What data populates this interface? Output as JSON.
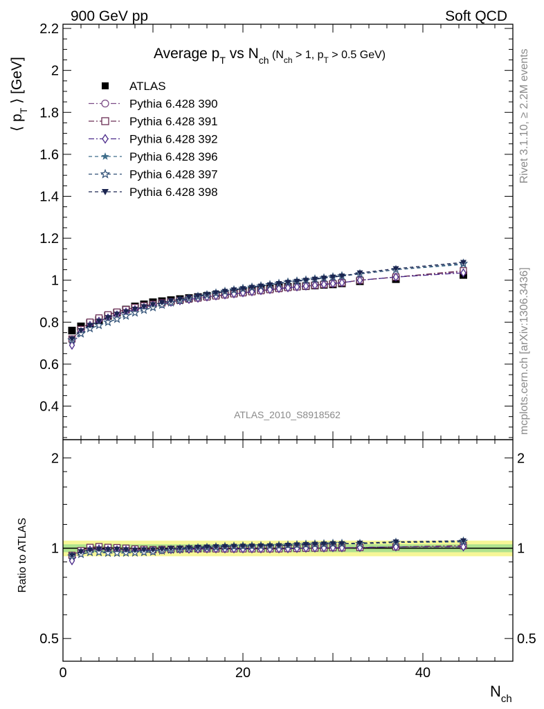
{
  "header": {
    "left": "900 GeV pp",
    "right": "Soft QCD"
  },
  "side": {
    "rivet": "Rivet 3.1.10, ≥ 2.2M events",
    "mcplots": "mcplots.cern.ch [arXiv:1306.3436]"
  },
  "analysis_tag": "ATLAS_2010_S8918562",
  "chart_data": [
    {
      "type": "scatter",
      "panel": "main",
      "title": {
        "prefix": "Average p",
        "prefix_sub": "T",
        "mid": " vs N",
        "mid_sub": "ch",
        "cuts_a": " (N",
        "cuts_a_sub": "ch",
        "cuts_b": " > 1, p",
        "cuts_b_sub": "T",
        "cuts_c": " > 0.5 GeV)"
      },
      "ylabel": {
        "pre": "⟨ p",
        "sub": "T",
        "post": " ⟩  [GeV]"
      },
      "xlabel": {
        "main": "N",
        "sub": "ch"
      },
      "xlim": [
        0,
        50
      ],
      "ylim": [
        0.24,
        2.22
      ],
      "x_ticks": [
        0,
        20,
        40
      ],
      "y_ticks": [
        0.4,
        0.6,
        0.8,
        1,
        1.2,
        1.4,
        1.6,
        1.8,
        2,
        2.2
      ],
      "legend_position": "top-left",
      "x": [
        1,
        2,
        3,
        4,
        5,
        6,
        7,
        8,
        9,
        10,
        11,
        12,
        13,
        14,
        15,
        16,
        17,
        18,
        19,
        20,
        21,
        22,
        23,
        24,
        25,
        26,
        27,
        28,
        29,
        30,
        31,
        33,
        37,
        44.5
      ],
      "series": [
        {
          "name": "ATLAS",
          "color": "#000000",
          "marker": "filled-square",
          "dash": "none",
          "values": [
            0.76,
            0.78,
            0.795,
            0.81,
            0.83,
            0.845,
            0.86,
            0.875,
            0.885,
            0.895,
            0.9,
            0.905,
            0.91,
            0.915,
            0.92,
            0.925,
            0.93,
            0.935,
            0.94,
            0.945,
            0.95,
            0.955,
            0.96,
            0.965,
            0.968,
            0.97,
            0.972,
            0.975,
            0.978,
            0.98,
            0.985,
            0.995,
            1.005,
            1.025
          ]
        },
        {
          "name": "Pythia 6.428 390",
          "color": "#7b4a85",
          "marker": "open-circle",
          "dash": "8,3,2,3",
          "values": [
            0.72,
            0.765,
            0.8,
            0.82,
            0.835,
            0.848,
            0.86,
            0.87,
            0.878,
            0.885,
            0.892,
            0.898,
            0.904,
            0.91,
            0.915,
            0.92,
            0.925,
            0.93,
            0.935,
            0.94,
            0.945,
            0.95,
            0.955,
            0.96,
            0.965,
            0.968,
            0.972,
            0.976,
            0.98,
            0.984,
            0.988,
            1.0,
            1.015,
            1.04
          ]
        },
        {
          "name": "Pythia 6.428 391",
          "color": "#6b2e55",
          "marker": "open-square",
          "dash": "8,3,2,3",
          "values": [
            0.72,
            0.765,
            0.8,
            0.82,
            0.835,
            0.848,
            0.86,
            0.87,
            0.878,
            0.885,
            0.892,
            0.898,
            0.904,
            0.91,
            0.915,
            0.92,
            0.925,
            0.93,
            0.935,
            0.94,
            0.945,
            0.95,
            0.955,
            0.96,
            0.965,
            0.968,
            0.972,
            0.976,
            0.98,
            0.984,
            0.988,
            1.0,
            1.015,
            1.045
          ]
        },
        {
          "name": "Pythia 6.428 392",
          "color": "#4b2a8a",
          "marker": "open-diamond",
          "dash": "8,3,2,3",
          "values": [
            0.69,
            0.755,
            0.785,
            0.805,
            0.82,
            0.835,
            0.848,
            0.86,
            0.87,
            0.88,
            0.888,
            0.895,
            0.902,
            0.908,
            0.914,
            0.92,
            0.925,
            0.93,
            0.935,
            0.94,
            0.945,
            0.95,
            0.955,
            0.96,
            0.964,
            0.968,
            0.972,
            0.976,
            0.98,
            0.984,
            0.988,
            1.0,
            1.015,
            1.035
          ]
        },
        {
          "name": "Pythia 6.428 396",
          "color": "#3e6d8a",
          "marker": "filled-star",
          "dash": "5,4",
          "values": [
            0.715,
            0.745,
            0.77,
            0.785,
            0.8,
            0.815,
            0.83,
            0.845,
            0.858,
            0.87,
            0.882,
            0.893,
            0.903,
            0.913,
            0.922,
            0.93,
            0.938,
            0.946,
            0.953,
            0.96,
            0.966,
            0.972,
            0.978,
            0.984,
            0.99,
            0.995,
            1.0,
            1.005,
            1.01,
            1.015,
            1.02,
            1.03,
            1.05,
            1.075
          ]
        },
        {
          "name": "Pythia 6.428 397",
          "color": "#2f4f75",
          "marker": "open-star",
          "dash": "5,4",
          "values": [
            0.715,
            0.745,
            0.77,
            0.785,
            0.8,
            0.815,
            0.83,
            0.845,
            0.858,
            0.87,
            0.882,
            0.893,
            0.903,
            0.913,
            0.922,
            0.93,
            0.938,
            0.946,
            0.953,
            0.96,
            0.966,
            0.972,
            0.978,
            0.984,
            0.99,
            0.995,
            1.0,
            1.005,
            1.01,
            1.015,
            1.02,
            1.03,
            1.05,
            1.08
          ]
        },
        {
          "name": "Pythia 6.428 398",
          "color": "#1b2550",
          "marker": "filled-triangle-down",
          "dash": "5,4",
          "values": [
            0.72,
            0.76,
            0.785,
            0.805,
            0.822,
            0.838,
            0.85,
            0.862,
            0.874,
            0.884,
            0.894,
            0.902,
            0.91,
            0.918,
            0.926,
            0.933,
            0.94,
            0.947,
            0.954,
            0.96,
            0.966,
            0.972,
            0.978,
            0.984,
            0.99,
            0.995,
            1.0,
            1.005,
            1.01,
            1.015,
            1.02,
            1.035,
            1.055,
            1.085
          ]
        }
      ]
    },
    {
      "type": "scatter",
      "panel": "ratio",
      "ylabel": "Ratio to ATLAS",
      "xlim": [
        0,
        50
      ],
      "ylim": [
        0.42,
        2.3
      ],
      "y_scale": "log",
      "y_ticks": [
        0.5,
        1,
        2
      ],
      "x_ticks": [
        0,
        20,
        40
      ],
      "reference_line": 1,
      "band_yellow": [
        0.94,
        1.06
      ],
      "band_green": [
        0.97,
        1.03
      ],
      "x": [
        1,
        2,
        3,
        4,
        5,
        6,
        7,
        8,
        9,
        10,
        11,
        12,
        13,
        14,
        15,
        16,
        17,
        18,
        19,
        20,
        21,
        22,
        23,
        24,
        25,
        26,
        27,
        28,
        29,
        30,
        31,
        33,
        37,
        44.5
      ],
      "series": [
        {
          "name": "Pythia 6.428 390",
          "values": [
            0.947,
            0.981,
            1.006,
            1.012,
            1.006,
            1.004,
            1.0,
            0.994,
            0.992,
            0.989,
            0.991,
            0.992,
            0.993,
            0.995,
            0.995,
            0.995,
            0.995,
            0.995,
            0.995,
            0.995,
            0.995,
            0.995,
            0.995,
            0.995,
            0.997,
            0.998,
            1.0,
            1.001,
            1.002,
            1.004,
            1.003,
            1.005,
            1.01,
            1.015
          ]
        },
        {
          "name": "Pythia 6.428 391",
          "values": [
            0.947,
            0.981,
            1.006,
            1.012,
            1.006,
            1.004,
            1.0,
            0.994,
            0.992,
            0.989,
            0.991,
            0.992,
            0.993,
            0.995,
            0.995,
            0.995,
            0.995,
            0.995,
            0.995,
            0.995,
            0.995,
            0.995,
            0.995,
            0.995,
            0.997,
            0.998,
            1.0,
            1.001,
            1.002,
            1.004,
            1.003,
            1.005,
            1.01,
            1.02
          ]
        },
        {
          "name": "Pythia 6.428 392",
          "values": [
            0.908,
            0.968,
            0.987,
            0.994,
            0.988,
            0.988,
            0.986,
            0.983,
            0.983,
            0.983,
            0.987,
            0.989,
            0.991,
            0.992,
            0.993,
            0.995,
            0.995,
            0.995,
            0.995,
            0.995,
            0.995,
            0.995,
            0.995,
            0.995,
            0.996,
            0.998,
            1.0,
            1.001,
            1.002,
            1.004,
            1.003,
            1.005,
            1.01,
            1.01
          ]
        },
        {
          "name": "Pythia 6.428 396",
          "values": [
            0.941,
            0.955,
            0.969,
            0.969,
            0.964,
            0.964,
            0.965,
            0.966,
            0.969,
            0.972,
            0.98,
            0.987,
            0.992,
            0.998,
            1.002,
            1.005,
            1.009,
            1.012,
            1.014,
            1.016,
            1.017,
            1.018,
            1.019,
            1.02,
            1.023,
            1.026,
            1.029,
            1.031,
            1.033,
            1.036,
            1.036,
            1.035,
            1.045,
            1.049
          ]
        },
        {
          "name": "Pythia 6.428 397",
          "values": [
            0.941,
            0.955,
            0.969,
            0.969,
            0.964,
            0.964,
            0.965,
            0.966,
            0.969,
            0.972,
            0.98,
            0.987,
            0.992,
            0.998,
            1.002,
            1.005,
            1.009,
            1.012,
            1.014,
            1.016,
            1.017,
            1.018,
            1.019,
            1.02,
            1.023,
            1.026,
            1.029,
            1.031,
            1.033,
            1.036,
            1.036,
            1.035,
            1.045,
            1.054
          ]
        },
        {
          "name": "Pythia 6.428 398",
          "values": [
            0.947,
            0.974,
            0.987,
            0.994,
            0.99,
            0.992,
            0.988,
            0.985,
            0.988,
            0.988,
            0.993,
            0.997,
            1.0,
            1.003,
            1.007,
            1.009,
            1.011,
            1.013,
            1.015,
            1.016,
            1.017,
            1.018,
            1.019,
            1.02,
            1.023,
            1.026,
            1.029,
            1.031,
            1.033,
            1.036,
            1.036,
            1.04,
            1.05,
            1.059
          ]
        }
      ]
    }
  ]
}
